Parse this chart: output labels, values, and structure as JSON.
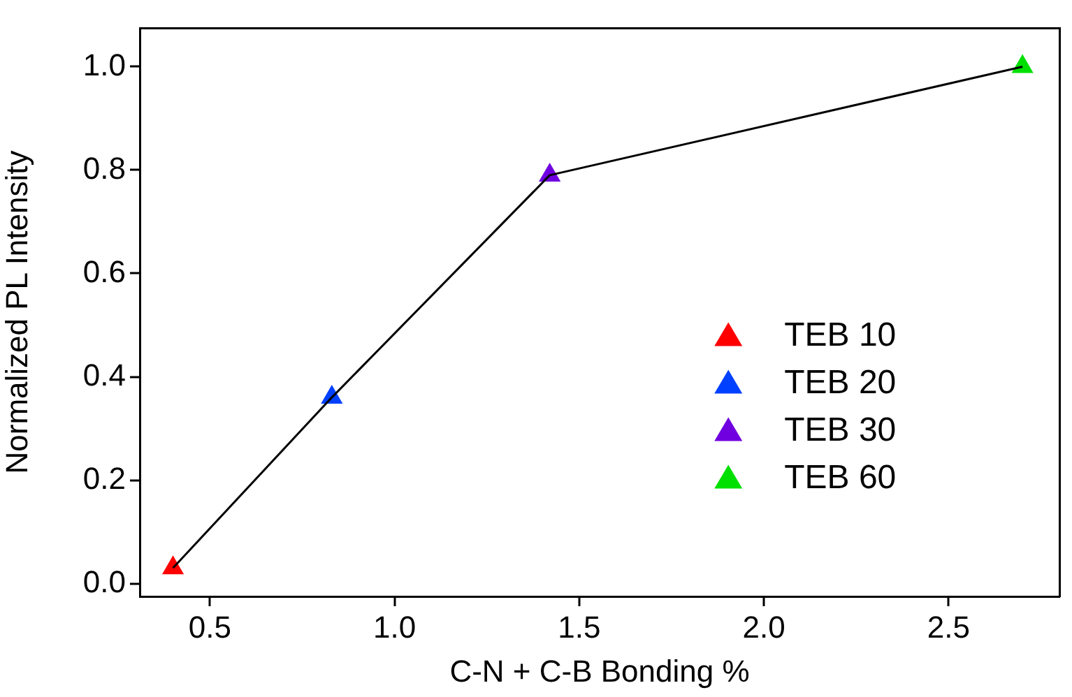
{
  "chart_data": {
    "type": "scatter",
    "xlabel": "C-N + C-B Bonding %",
    "ylabel": "Normalized PL Intensity",
    "xlim": [
      0.31,
      2.8
    ],
    "xticks": [
      0.5,
      {
        "value": 1,
        "label": "1.0"
      },
      1.5,
      {
        "value": 2,
        "label": "2.0"
      },
      2.5
    ],
    "ylim": [
      -0.025,
      1.075
    ],
    "yticks": [
      {
        "value": 0,
        "label": "0.0"
      },
      0.2,
      0.4,
      0.6,
      0.8,
      {
        "value": 1,
        "label": "1.0"
      }
    ],
    "grid": false,
    "legend": "right",
    "marker": "triangle",
    "series": [
      {
        "type": "line",
        "color": "#000000",
        "marker": "none",
        "x": [
          0.4,
          0.83,
          1.42,
          2.7
        ],
        "values": [
          0.03,
          0.36,
          0.79,
          1.0
        ]
      },
      {
        "type": "scatter",
        "name": "TEB 10",
        "color": "#ff0000",
        "x": [
          0.4
        ],
        "values": [
          0.03
        ]
      },
      {
        "type": "scatter",
        "name": "TEB 20",
        "color": "#0040ff",
        "x": [
          0.83
        ],
        "values": [
          0.36
        ]
      },
      {
        "type": "scatter",
        "name": "TEB 30",
        "color": "#7000e0",
        "x": [
          1.42
        ],
        "values": [
          0.79
        ]
      },
      {
        "type": "scatter",
        "name": "TEB 60",
        "color": "#00e000",
        "x": [
          2.7
        ],
        "values": [
          1.0
        ]
      }
    ]
  }
}
